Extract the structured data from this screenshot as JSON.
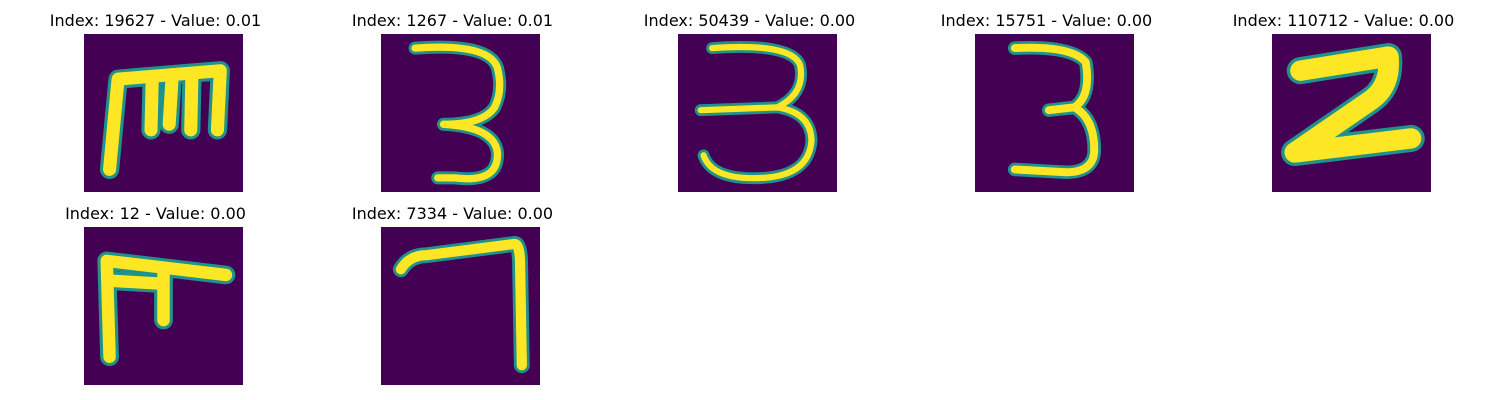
{
  "colors": {
    "background": "#440154",
    "edge": "#21918c",
    "stroke": "#fde725"
  },
  "grid": [
    {
      "title": "Index: 19627 - Value: 0.01",
      "glyph": "m-shape-icon"
    },
    {
      "title": "Index: 1267 - Value: 0.01",
      "glyph": "digit-three-icon"
    },
    {
      "title": "Index: 50439 - Value: 0.00",
      "glyph": "digit-three-icon"
    },
    {
      "title": "Index: 15751 - Value: 0.00",
      "glyph": "digit-three-icon"
    },
    {
      "title": "Index: 110712 - Value: 0.00",
      "glyph": "digit-two-icon"
    },
    {
      "title": "Index: 12 - Value: 0.00",
      "glyph": "f-shape-icon"
    },
    {
      "title": "Index: 7334 - Value: 0.00",
      "glyph": "digit-seven-icon"
    }
  ]
}
